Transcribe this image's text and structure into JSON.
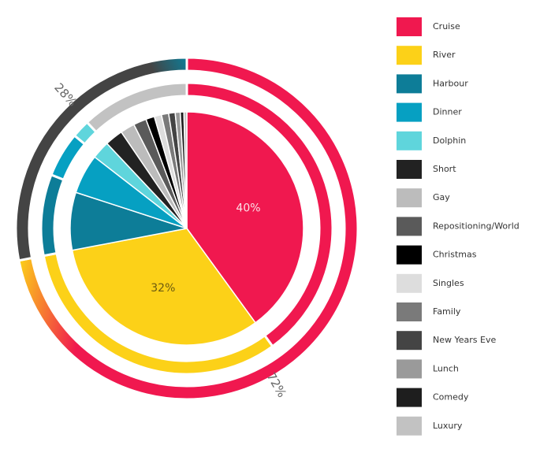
{
  "chart_data": {
    "type": "pie",
    "categories": [
      "Cruise",
      "River",
      "Harbour",
      "Dinner",
      "Dolphin",
      "Short",
      "Gay",
      "Repositioning/World",
      "Christmas",
      "Singles",
      "Family",
      "New Years Eve",
      "Lunch",
      "Comedy",
      "Luxury"
    ],
    "values": [
      40,
      32,
      8,
      5.5,
      2.5,
      2.5,
      2,
      1.8,
      1.2,
      1,
      1,
      0.9,
      0.7,
      0.5,
      0.4
    ],
    "value_labels": [
      "40%",
      "32%",
      null,
      null,
      null,
      null,
      null,
      null,
      null,
      null,
      null,
      null,
      null,
      null,
      null
    ],
    "colors": [
      "#f0184f",
      "#fcd118",
      "#0d7d98",
      "#06a0c2",
      "#5fd5dc",
      "#222222",
      "#bcbcbc",
      "#5a5a5a",
      "#000000",
      "#dddddd",
      "#7a7a7a",
      "#444444",
      "#9a9a9a",
      "#1e1e1e",
      "#c2c2c2"
    ],
    "rings": [
      {
        "values": [
          40,
          32,
          9,
          5,
          2,
          12
        ],
        "colors": [
          "#f0184f",
          "#fcd118",
          "#0d7d98",
          "#06a0c2",
          "#5fd5dc",
          "#c2c2c2"
        ]
      },
      {
        "values": [
          72,
          28
        ],
        "colors": [
          "#f0184f",
          "#444444"
        ],
        "end_colors": [
          "#fcd118",
          "#0d7d98"
        ],
        "value_labels": [
          "72%",
          "28%"
        ]
      }
    ]
  }
}
